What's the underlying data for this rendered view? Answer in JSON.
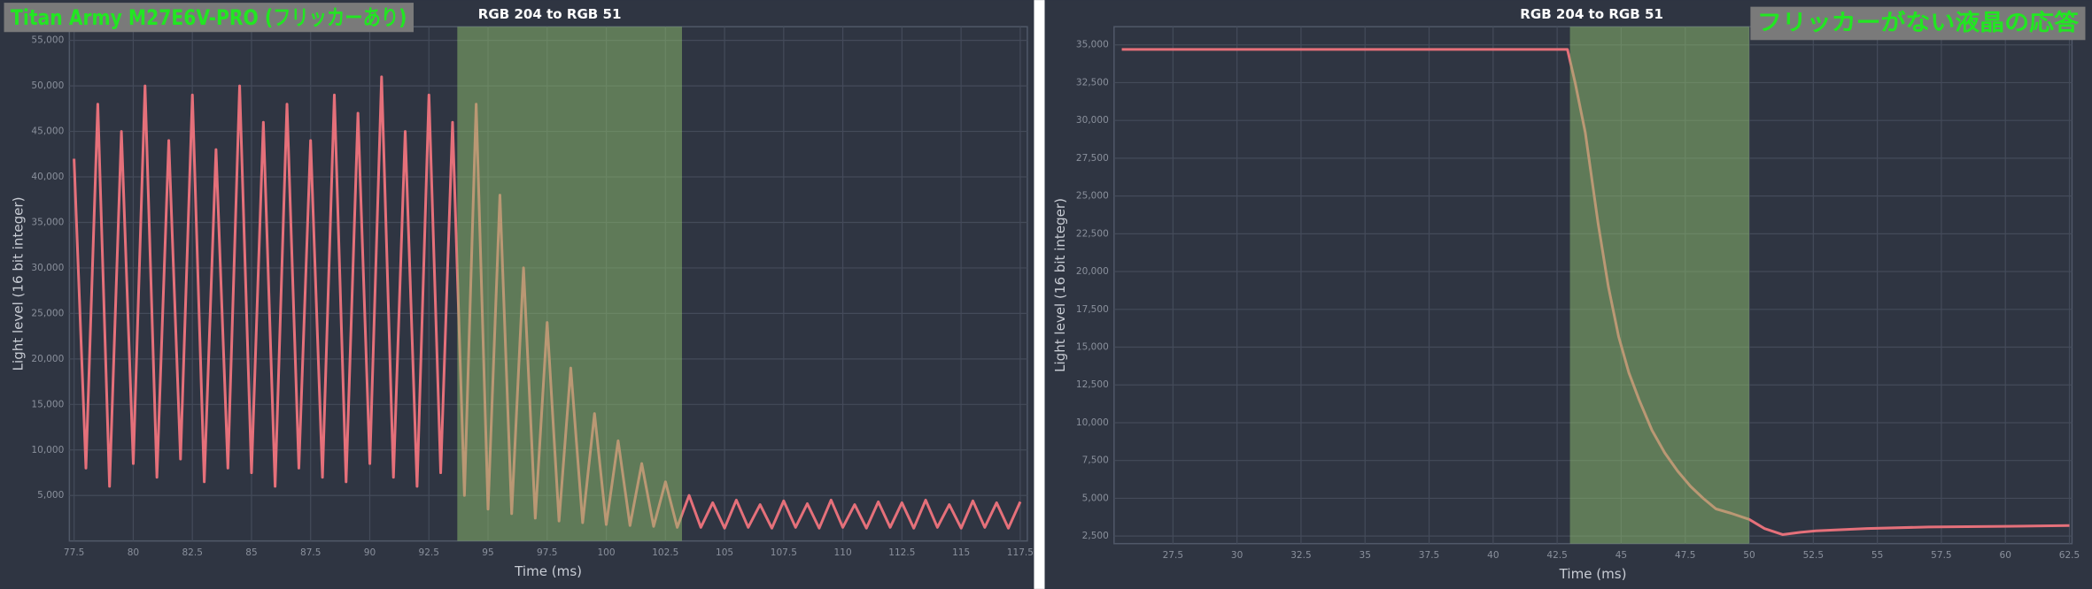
{
  "chart_data": [
    {
      "type": "line",
      "title": "RGB 204 to RGB 51",
      "x_label": "Time (ms)",
      "y_label": "Light level (16 bit integer)",
      "annotation": "Titan Army M27E6V-PRO (フリッカーあり)",
      "x": [
        77.5,
        78,
        78.5,
        79,
        79.5,
        80,
        80.5,
        81,
        81.5,
        82,
        82.5,
        83,
        83.5,
        84,
        84.5,
        85,
        85.5,
        86,
        86.5,
        87,
        87.5,
        88,
        88.5,
        89,
        89.5,
        90,
        90.5,
        91,
        91.5,
        92,
        92.5,
        93,
        93.5,
        94,
        94.5,
        95,
        95.5,
        96,
        96.5,
        97,
        97.5,
        98,
        98.5,
        99,
        99.5,
        100,
        100.5,
        101,
        101.5,
        102,
        102.5,
        103,
        103.5,
        104,
        104.5,
        105,
        105.5,
        106,
        106.5,
        107,
        107.5,
        108,
        108.5,
        109,
        109.5,
        110,
        110.5,
        111,
        111.5,
        112,
        112.5,
        113,
        113.5,
        114,
        114.5,
        115,
        115.5,
        116,
        116.5,
        117,
        117.5
      ],
      "values": [
        42000,
        8000,
        48000,
        6000,
        45000,
        8500,
        50000,
        7000,
        44000,
        9000,
        49000,
        6500,
        43000,
        8000,
        50000,
        7500,
        46000,
        6000,
        48000,
        8000,
        44000,
        7000,
        49000,
        6500,
        47000,
        8500,
        51000,
        7000,
        45000,
        6000,
        49000,
        7500,
        46000,
        5000,
        48000,
        3500,
        38000,
        3000,
        30000,
        2500,
        24000,
        2200,
        19000,
        2000,
        14000,
        1800,
        11000,
        1700,
        8500,
        1600,
        6500,
        1500,
        5000,
        1500,
        4200,
        1400,
        4500,
        1500,
        4000,
        1400,
        4400,
        1500,
        4100,
        1400,
        4500,
        1500,
        4000,
        1400,
        4300,
        1500,
        4200,
        1400,
        4500,
        1500,
        4000,
        1400,
        4400,
        1500,
        4200,
        1400,
        4300
      ],
      "color": "#e5707a",
      "shaded_region": {
        "xrange": [
          93.7,
          103.2
        ],
        "color": "#8fbf6e"
      },
      "xlim": [
        77.3,
        117.8
      ],
      "ylim": [
        0,
        56500
      ],
      "xticks": [
        77.5,
        80,
        82.5,
        85,
        87.5,
        90,
        92.5,
        95,
        97.5,
        100,
        102.5,
        105,
        107.5,
        110,
        112.5,
        115,
        117.5
      ],
      "yticks": [
        {
          "value": 5000,
          "label": "5,000"
        },
        {
          "value": 10000,
          "label": "10,000"
        },
        {
          "value": 15000,
          "label": "15,000"
        },
        {
          "value": 20000,
          "label": "20,000"
        },
        {
          "value": 25000,
          "label": "25,000"
        },
        {
          "value": 30000,
          "label": "30,000"
        },
        {
          "value": 35000,
          "label": "35,000"
        },
        {
          "value": 40000,
          "label": "40,000"
        },
        {
          "value": 45000,
          "label": "45,000"
        },
        {
          "value": 50000,
          "label": "50,000"
        },
        {
          "value": 55000,
          "label": "55,000"
        }
      ],
      "grid": true
    },
    {
      "type": "line",
      "title": "RGB 204 to RGB 51",
      "x_label": "Time (ms)",
      "y_label": "Light level (16 bit integer)",
      "annotation": "フリッカーがない液晶の応答",
      "x": [
        25.5,
        30,
        35,
        40,
        42.9,
        43.2,
        43.6,
        44.1,
        44.5,
        44.9,
        45.3,
        45.7,
        46.2,
        46.7,
        47.2,
        47.7,
        48.2,
        48.7,
        49.3,
        50,
        50.6,
        51.3,
        52,
        52.6,
        54.6,
        57,
        60,
        62.5
      ],
      "values": [
        34700,
        34700,
        34700,
        34700,
        34700,
        32500,
        29200,
        23200,
        19000,
        15700,
        13300,
        11500,
        9500,
        8000,
        6800,
        5800,
        5000,
        4300,
        4000,
        3600,
        3000,
        2600,
        2750,
        2850,
        3000,
        3100,
        3150,
        3200
      ],
      "color": "#e5707a",
      "shaded_region": {
        "xrange": [
          43,
          50
        ],
        "color": "#8fbf6e"
      },
      "xlim": [
        25.2,
        62.6
      ],
      "ylim": [
        2000,
        36200
      ],
      "xticks": [
        27.5,
        30,
        32.5,
        35,
        37.5,
        40,
        42.5,
        45,
        47.5,
        50,
        52.5,
        55,
        57.5,
        60,
        62.5
      ],
      "yticks": [
        {
          "value": 2500,
          "label": "2,500"
        },
        {
          "value": 5000,
          "label": "5,000"
        },
        {
          "value": 7500,
          "label": "7,500"
        },
        {
          "value": 10000,
          "label": "10,000"
        },
        {
          "value": 12500,
          "label": "12,500"
        },
        {
          "value": 15000,
          "label": "15,000"
        },
        {
          "value": 17500,
          "label": "17,500"
        },
        {
          "value": 20000,
          "label": "20,000"
        },
        {
          "value": 22500,
          "label": "22,500"
        },
        {
          "value": 25000,
          "label": "25,000"
        },
        {
          "value": 27500,
          "label": "27,500"
        },
        {
          "value": 30000,
          "label": "30,000"
        },
        {
          "value": 32500,
          "label": "32,500"
        },
        {
          "value": 35000,
          "label": "35,000"
        }
      ],
      "grid": true
    }
  ]
}
